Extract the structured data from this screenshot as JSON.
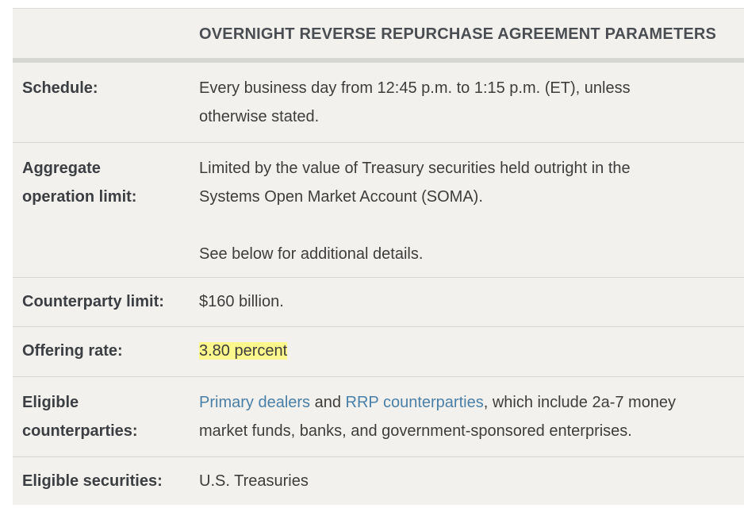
{
  "header": {
    "title": "OVERNIGHT REVERSE REPURCHASE AGREEMENT PARAMETERS"
  },
  "rows": {
    "schedule": {
      "label": "Schedule:",
      "value_line1": "Every business day from 12:45 p.m. to 1:15 p.m. (ET), unless",
      "value_line2": "otherwise stated."
    },
    "aggregate": {
      "label_line1": "Aggregate",
      "label_line2": "operation limit:",
      "value_line1": "Limited by the value of Treasury securities held outright in the",
      "value_line2": "Systems Open Market Account (SOMA).",
      "value_line3": "See below for additional details."
    },
    "counterparty_limit": {
      "label": "Counterparty limit:",
      "value": "$160 billion."
    },
    "offering_rate": {
      "label": "Offering rate:",
      "value": "3.80 percent"
    },
    "eligible_counterparties": {
      "label_line1": "Eligible",
      "label_line2": "counterparties:",
      "link1": "Primary dealers",
      "text1": " and ",
      "link2": "RRP counterparties",
      "text2": ", which include 2a-7 money",
      "value_line2": "market funds, banks, and government-sponsored enterprises."
    },
    "eligible_securities": {
      "label": "Eligible securities:",
      "value": "U.S. Treasuries"
    }
  },
  "colors": {
    "background": "#f2f1ed",
    "link": "#4a7fa8",
    "highlight": "#fdf88d"
  }
}
